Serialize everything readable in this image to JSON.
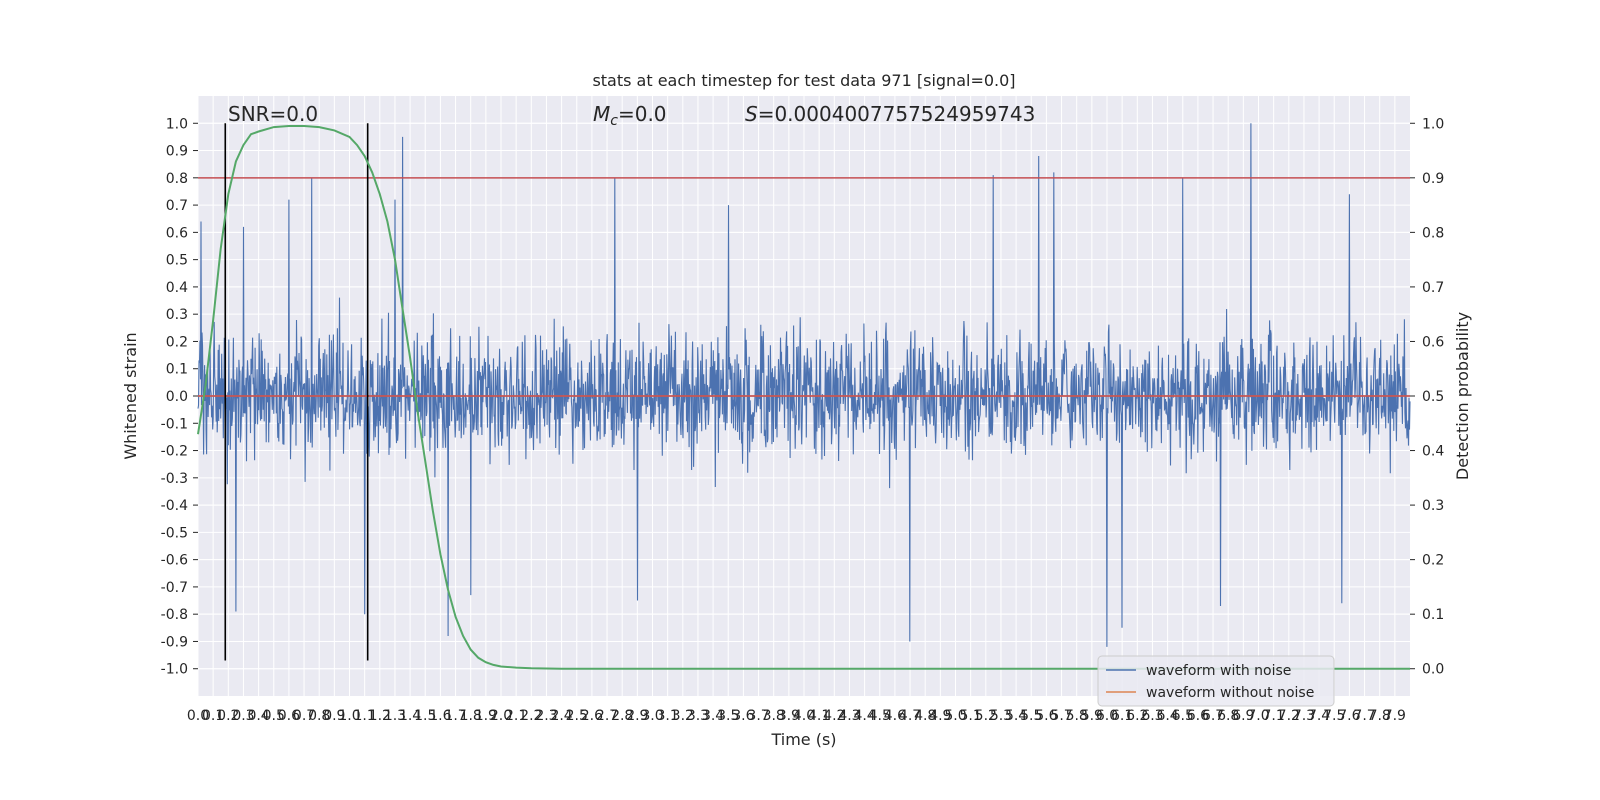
{
  "chart_data": {
    "type": "line",
    "title": "stats at each timestep for test data 971 [signal=0.0]",
    "xlabel": "Time (s)",
    "ylabel_left": "Whitened strain",
    "ylabel_right": "Detection probability",
    "xlim": [
      0.0,
      8.0
    ],
    "ylim_left": [
      -1.1,
      1.1
    ],
    "ylim_right": [
      -0.05,
      1.05
    ],
    "grid": true,
    "xticks": [
      0.0,
      0.1,
      0.2,
      0.3,
      0.4,
      0.5,
      0.6,
      0.7,
      0.8,
      0.9,
      1.0,
      1.1,
      1.2,
      1.3,
      1.4,
      1.5,
      1.6,
      1.7,
      1.8,
      1.9,
      2.0,
      2.1,
      2.2,
      2.3,
      2.4,
      2.5,
      2.6,
      2.7,
      2.8,
      2.9,
      3.0,
      3.1,
      3.2,
      3.3,
      3.4,
      3.5,
      3.6,
      3.7,
      3.8,
      3.9,
      4.0,
      4.1,
      4.2,
      4.3,
      4.4,
      4.5,
      4.6,
      4.7,
      4.8,
      4.9,
      5.0,
      5.1,
      5.2,
      5.3,
      5.4,
      5.5,
      5.6,
      5.7,
      5.8,
      5.9,
      6.0,
      6.1,
      6.2,
      6.3,
      6.4,
      6.5,
      6.6,
      6.7,
      6.8,
      6.9,
      7.0,
      7.1,
      7.2,
      7.3,
      7.4,
      7.5,
      7.6,
      7.7,
      7.8,
      7.9
    ],
    "xtick_labels": [
      "0.0",
      "0.1",
      "0.2",
      "0.3",
      "0.4",
      "0.5",
      "0.6",
      "0.7",
      "0.8",
      "0.9",
      "1.0",
      "1.1",
      "1.2",
      "1.3",
      "1.4",
      "1.5",
      "1.6",
      "1.7",
      "1.8",
      "1.9",
      "2.0",
      "2.1",
      "2.2",
      "2.3",
      "2.4",
      "2.5",
      "2.6",
      "2.7",
      "2.8",
      "2.9",
      "3.0",
      "3.1",
      "3.2",
      "3.3",
      "3.4",
      "3.5",
      "3.6",
      "3.7",
      "3.8",
      "3.9",
      "4.0",
      "4.1",
      "4.2",
      "4.3",
      "4.4",
      "4.5",
      "4.6",
      "4.7",
      "4.8",
      "4.9",
      "5.0",
      "5.1",
      "5.2",
      "5.3",
      "5.4",
      "5.5",
      "5.6",
      "5.7",
      "5.8",
      "5.9",
      "6.0",
      "6.1",
      "6.2",
      "6.3",
      "6.4",
      "6.5",
      "6.6",
      "6.7",
      "6.8",
      "6.9",
      "7.0",
      "7.1",
      "7.2",
      "7.3",
      "7.4",
      "7.5",
      "7.6",
      "7.7",
      "7.8",
      "7.9"
    ],
    "yticks_left": [
      -1.0,
      -0.9,
      -0.8,
      -0.7,
      -0.6,
      -0.5,
      -0.4,
      -0.3,
      -0.2,
      -0.1,
      0.0,
      0.1,
      0.2,
      0.3,
      0.4,
      0.5,
      0.6,
      0.7,
      0.8,
      0.9,
      1.0
    ],
    "ytick_labels_left": [
      "-1.0",
      "-0.9",
      "-0.8",
      "-0.7",
      "-0.6",
      "-0.5",
      "-0.4",
      "-0.3",
      "-0.2",
      "-0.1",
      "0.0",
      "0.1",
      "0.2",
      "0.3",
      "0.4",
      "0.5",
      "0.6",
      "0.7",
      "0.8",
      "0.9",
      "1.0"
    ],
    "yticks_right": [
      0.0,
      0.1,
      0.2,
      0.3,
      0.4,
      0.5,
      0.6,
      0.7,
      0.8,
      0.9,
      1.0
    ],
    "ytick_labels_right": [
      "0.0",
      "0.1",
      "0.2",
      "0.3",
      "0.4",
      "0.5",
      "0.6",
      "0.7",
      "0.8",
      "0.9",
      "1.0"
    ],
    "annotations": {
      "snr": "SNR=0.0",
      "mc_symbol": "M",
      "mc_sub": "c",
      "mc_value": "=0.0",
      "s_symbol": "S",
      "s_value": "=0.0004007757524959743"
    },
    "noise_envelope": {
      "description_units": "whitened strain",
      "typical_upper": 0.4,
      "typical_lower": -0.4,
      "peaks": [
        {
          "x": 0.02,
          "y": 0.64
        },
        {
          "x": 0.3,
          "y": 0.62
        },
        {
          "x": 0.6,
          "y": 0.72
        },
        {
          "x": 0.75,
          "y": 0.8
        },
        {
          "x": 1.35,
          "y": 0.95
        },
        {
          "x": 1.3,
          "y": 0.72
        },
        {
          "x": 2.75,
          "y": 0.8
        },
        {
          "x": 3.5,
          "y": 0.7
        },
        {
          "x": 5.25,
          "y": 0.81
        },
        {
          "x": 5.55,
          "y": 0.88
        },
        {
          "x": 5.65,
          "y": 0.82
        },
        {
          "x": 6.5,
          "y": 0.8
        },
        {
          "x": 6.75,
          "y": 0.8
        },
        {
          "x": 6.95,
          "y": 1.0
        },
        {
          "x": 7.6,
          "y": 0.74
        }
      ],
      "troughs": [
        {
          "x": 0.25,
          "y": -0.79
        },
        {
          "x": 1.1,
          "y": -0.8
        },
        {
          "x": 1.65,
          "y": -0.88
        },
        {
          "x": 1.8,
          "y": -0.73
        },
        {
          "x": 2.9,
          "y": -0.75
        },
        {
          "x": 4.7,
          "y": -0.9
        },
        {
          "x": 6.0,
          "y": -0.92
        },
        {
          "x": 6.1,
          "y": -0.85
        },
        {
          "x": 6.75,
          "y": -0.77
        },
        {
          "x": 7.55,
          "y": -0.76
        }
      ]
    },
    "series": [
      {
        "name": "waveform with noise",
        "color": "#4c72b0",
        "axis": "left"
      },
      {
        "name": "waveform without noise",
        "color": "#dd8452",
        "axis": "left",
        "values_constant": 0.0
      },
      {
        "axis": "right",
        "color": "#55a868",
        "x": [
          0.0,
          0.05,
          0.1,
          0.15,
          0.2,
          0.25,
          0.3,
          0.35,
          0.4,
          0.5,
          0.6,
          0.7,
          0.8,
          0.9,
          1.0,
          1.05,
          1.1,
          1.15,
          1.2,
          1.25,
          1.3,
          1.35,
          1.4,
          1.45,
          1.5,
          1.55,
          1.6,
          1.65,
          1.7,
          1.75,
          1.8,
          1.85,
          1.9,
          1.95,
          2.0,
          2.1,
          2.2,
          2.4,
          3.0,
          8.0
        ],
        "y": [
          0.43,
          0.52,
          0.64,
          0.77,
          0.87,
          0.93,
          0.96,
          0.98,
          0.985,
          0.993,
          0.995,
          0.995,
          0.993,
          0.987,
          0.975,
          0.96,
          0.94,
          0.91,
          0.87,
          0.82,
          0.75,
          0.66,
          0.57,
          0.47,
          0.38,
          0.29,
          0.21,
          0.145,
          0.095,
          0.06,
          0.035,
          0.02,
          0.012,
          0.007,
          0.004,
          0.002,
          0.001,
          0.0,
          0.0,
          0.0
        ]
      }
    ],
    "hlines": [
      {
        "y_right": 0.9,
        "color": "#c44e52"
      },
      {
        "y_right": 0.5,
        "color": "#c44e52"
      }
    ],
    "vlines": [
      {
        "x": 0.18,
        "y_range": [
          -0.97,
          1.0
        ],
        "color": "#000000"
      },
      {
        "x": 1.12,
        "y_range": [
          -0.97,
          1.0
        ],
        "color": "#000000"
      }
    ],
    "legend": {
      "placement": "lower-right",
      "entries": [
        "waveform with noise",
        "waveform without noise"
      ]
    }
  }
}
